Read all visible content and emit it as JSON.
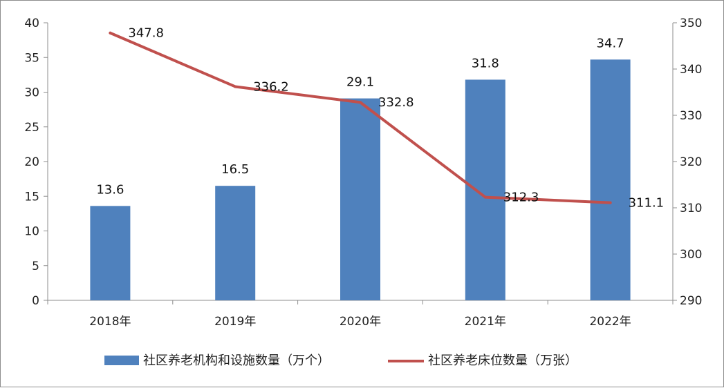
{
  "chart_data": {
    "type": "bar+line",
    "categories": [
      "2018年",
      "2019年",
      "2020年",
      "2021年",
      "2022年"
    ],
    "series": [
      {
        "name": "社区养老机构和设施数量（万个）",
        "type": "bar",
        "axis": "left",
        "color": "#4f81bd",
        "values": [
          13.6,
          16.5,
          29.1,
          31.8,
          34.7
        ],
        "labels": [
          "13.6",
          "16.5",
          "29.1",
          "31.8",
          "34.7"
        ]
      },
      {
        "name": "社区养老床位数量（万张）",
        "type": "line",
        "axis": "right",
        "color": "#c0504d",
        "values": [
          347.8,
          336.2,
          332.8,
          312.3,
          311.1
        ],
        "labels": [
          "347.8",
          "336.2",
          "332.8",
          "312.3",
          "311.1"
        ]
      }
    ],
    "y_left": {
      "min": 0,
      "max": 40,
      "ticks": [
        "0",
        "5",
        "10",
        "15",
        "20",
        "25",
        "30",
        "35",
        "40"
      ]
    },
    "y_right": {
      "min": 290,
      "max": 350,
      "ticks": [
        "290",
        "300",
        "310",
        "320",
        "330",
        "340",
        "350"
      ]
    },
    "grid": false,
    "legend": "bottom"
  }
}
